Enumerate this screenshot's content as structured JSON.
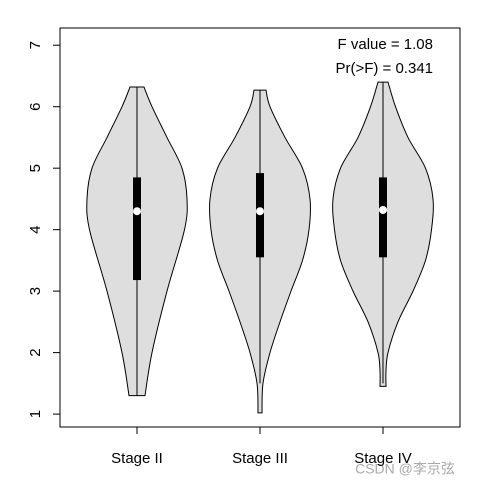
{
  "chart_data": {
    "type": "violin",
    "categories": [
      "Stage II",
      "Stage III",
      "Stage IV"
    ],
    "annotations": [
      "F value = 1.08",
      "Pr(>F) = 0.341"
    ],
    "watermark": "CSDN @李京弦",
    "fill": "#dedede",
    "ylim": [
      0.79,
      7.28
    ],
    "yticks": [
      1,
      2,
      3,
      4,
      5,
      6,
      7
    ],
    "series": [
      {
        "whisker_low": 1.3,
        "whisker_high": 6.32,
        "q1": 3.18,
        "median": 4.3,
        "q3": 4.85,
        "density_y": [
          1.3,
          2.0,
          3.0,
          4.0,
          4.5,
          5.0,
          5.5,
          6.0,
          6.32
        ],
        "density": [
          0.16,
          0.3,
          0.6,
          0.95,
          1.0,
          0.9,
          0.6,
          0.3,
          0.14
        ]
      },
      {
        "whisker_low": 1.5,
        "whisker_high": 6.27,
        "q1": 3.55,
        "median": 4.3,
        "q3": 4.92,
        "density_y": [
          1.02,
          1.5,
          2.0,
          2.5,
          3.0,
          3.5,
          4.0,
          4.5,
          5.0,
          5.5,
          6.0,
          6.27
        ],
        "density": [
          0.04,
          0.06,
          0.2,
          0.4,
          0.62,
          0.85,
          0.98,
          1.0,
          0.85,
          0.5,
          0.2,
          0.12
        ]
      },
      {
        "whisker_low": 1.5,
        "whisker_high": 6.4,
        "q1": 3.55,
        "median": 4.32,
        "q3": 4.85,
        "density_y": [
          1.45,
          1.7,
          2.0,
          2.5,
          3.0,
          3.5,
          4.0,
          4.5,
          5.0,
          5.5,
          6.0,
          6.4
        ],
        "density": [
          0.06,
          0.06,
          0.1,
          0.3,
          0.6,
          0.85,
          0.97,
          1.0,
          0.85,
          0.5,
          0.25,
          0.1
        ]
      }
    ]
  }
}
